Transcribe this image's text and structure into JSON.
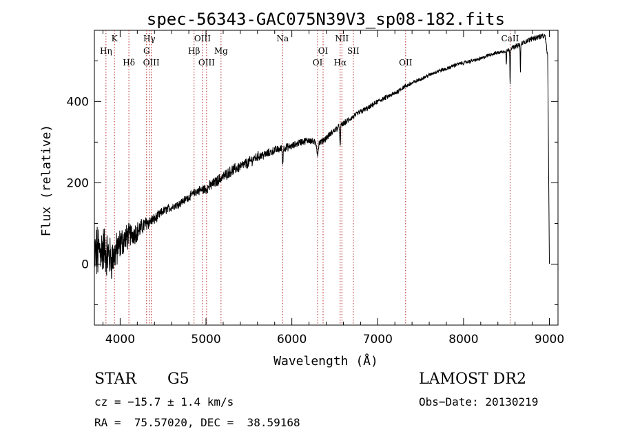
{
  "chart_data": {
    "type": "line",
    "title": "spec-56343-GAC075N39V3_sp08-182.fits",
    "xlabel": "Wavelength (Å)",
    "ylabel": "Flux (relative)",
    "xlim": [
      3700,
      9100
    ],
    "ylim": [
      -150,
      575
    ],
    "xticks": [
      4000,
      5000,
      6000,
      7000,
      8000,
      9000
    ],
    "yticks": [
      0,
      200,
      400
    ],
    "grid": false,
    "line_color": "#000000",
    "marker_color": "#b22222",
    "lines": [
      {
        "label": "Hη",
        "x": 3835,
        "row": 2
      },
      {
        "label": "K",
        "x": 3934,
        "row": 0
      },
      {
        "label": "Hδ",
        "x": 4102,
        "row": 3
      },
      {
        "label": "Hγ",
        "x": 4340,
        "row": 0
      },
      {
        "label": "G",
        "x": 4308,
        "row": 2
      },
      {
        "label": "OIII",
        "x": 4363,
        "row": 3
      },
      {
        "label": "OIII",
        "x": 4959,
        "row": 0
      },
      {
        "label": "Hβ",
        "x": 4861,
        "row": 2
      },
      {
        "label": "OIII",
        "x": 5007,
        "row": 3
      },
      {
        "label": "Mg",
        "x": 5175,
        "row": 2
      },
      {
        "label": "Na",
        "x": 5893,
        "row": 0
      },
      {
        "label": "OI",
        "x": 6364,
        "row": 2
      },
      {
        "label": "OI",
        "x": 6300,
        "row": 3
      },
      {
        "label": "NII",
        "x": 6583,
        "row": 0
      },
      {
        "label": "Hα",
        "x": 6563,
        "row": 3
      },
      {
        "label": "SII",
        "x": 6716,
        "row": 2
      },
      {
        "label": "OII",
        "x": 7325,
        "row": 3
      },
      {
        "label": "CaII",
        "x": 8542,
        "row": 0
      }
    ],
    "spectrum": {
      "x": [
        3700,
        3800,
        3900,
        4000,
        4100,
        4200,
        4300,
        4400,
        4500,
        4600,
        4700,
        4800,
        4900,
        5000,
        5100,
        5200,
        5300,
        5400,
        5500,
        5600,
        5700,
        5800,
        5900,
        6000,
        6100,
        6200,
        6300,
        6400,
        6500,
        6600,
        6700,
        6800,
        6900,
        7000,
        7100,
        7200,
        7300,
        7400,
        7500,
        7600,
        7700,
        7800,
        7900,
        8000,
        8100,
        8200,
        8300,
        8400,
        8500,
        8600,
        8700,
        8800,
        8900,
        8950,
        8980,
        9000
      ],
      "y": [
        20,
        40,
        10,
        50,
        70,
        80,
        100,
        110,
        130,
        140,
        150,
        165,
        180,
        185,
        200,
        215,
        230,
        240,
        250,
        265,
        270,
        280,
        285,
        290,
        300,
        305,
        295,
        310,
        330,
        345,
        360,
        375,
        385,
        400,
        410,
        420,
        435,
        445,
        455,
        465,
        475,
        480,
        490,
        495,
        500,
        505,
        515,
        520,
        525,
        535,
        545,
        555,
        560,
        560,
        510,
        0
      ],
      "noise": [
        65,
        55,
        45,
        35,
        28,
        22,
        16,
        12,
        10,
        9,
        9,
        9,
        10,
        12,
        12,
        12,
        12,
        12,
        12,
        11,
        10,
        9,
        9,
        8,
        8,
        8,
        8,
        7,
        7,
        7,
        6,
        6,
        6,
        6,
        5,
        5,
        5,
        5,
        4,
        4,
        4,
        4,
        4,
        4,
        4,
        4,
        4,
        4,
        4,
        5,
        5,
        6,
        6,
        5,
        5,
        2
      ],
      "absorption": [
        {
          "x": 5893,
          "depth": 40,
          "width": 6
        },
        {
          "x": 6300,
          "depth": 25,
          "width": 10
        },
        {
          "x": 6563,
          "depth": 55,
          "width": 5
        },
        {
          "x": 8498,
          "depth": 35,
          "width": 4
        },
        {
          "x": 8542,
          "depth": 85,
          "width": 4
        },
        {
          "x": 8662,
          "depth": 70,
          "width": 4
        }
      ]
    }
  },
  "info": {
    "object_type": "STAR",
    "subclass": "G5",
    "survey": "LAMOST DR2",
    "cz": "cz = −15.7 ± 1.4 km/s",
    "obs_date": "Obs−Date: 20130219",
    "coords": "RA =  75.57020, DEC =  38.59168"
  }
}
